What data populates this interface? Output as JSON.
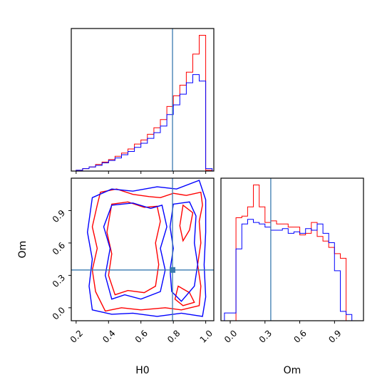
{
  "chart_data": [
    {
      "type": "histogram",
      "panel": "H0 marginal",
      "xlabel": "",
      "xlim": [
        0.17,
        1.05
      ],
      "truth_x": 0.795,
      "bin_edges": [
        0.2,
        0.24,
        0.28,
        0.32,
        0.36,
        0.4,
        0.44,
        0.48,
        0.52,
        0.56,
        0.6,
        0.64,
        0.68,
        0.72,
        0.76,
        0.8,
        0.84,
        0.88,
        0.92,
        0.96,
        1.0,
        1.04
      ],
      "series": [
        {
          "color": "#ff0000",
          "values": [
            0.2,
            0.6,
            1.0,
            1.6,
            2.2,
            2.8,
            3.6,
            4.4,
            5.4,
            6.6,
            7.6,
            9.0,
            10.6,
            12.6,
            15.8,
            18.4,
            21.0,
            24.2,
            28.6,
            33.2,
            0.2
          ]
        },
        {
          "color": "#0000ff",
          "values": [
            0.2,
            0.6,
            1.0,
            1.4,
            2.0,
            2.6,
            3.2,
            4.0,
            4.8,
            5.8,
            6.8,
            8.0,
            9.4,
            11.0,
            13.8,
            16.2,
            18.8,
            21.6,
            23.6,
            22.0,
            0.6
          ]
        }
      ]
    },
    {
      "type": "histogram",
      "panel": "Om marginal",
      "xlabel": "Om",
      "xlim": [
        -0.08,
        1.15
      ],
      "xticks": [
        "0.0",
        "0.3",
        "0.6",
        "0.9"
      ],
      "truth_x": 0.35,
      "bin_edges": [
        -0.05,
        0.0,
        0.05,
        0.1,
        0.15,
        0.2,
        0.25,
        0.3,
        0.35,
        0.4,
        0.45,
        0.5,
        0.55,
        0.6,
        0.65,
        0.7,
        0.75,
        0.8,
        0.85,
        0.9,
        0.95,
        1.0,
        1.05,
        1.1,
        1.15
      ],
      "series": [
        {
          "color": "#ff0000",
          "values": [
            0.0,
            0.0,
            0.66,
            0.67,
            0.73,
            0.87,
            0.73,
            0.63,
            0.64,
            0.62,
            0.62,
            0.6,
            0.6,
            0.55,
            0.56,
            0.63,
            0.54,
            0.51,
            0.47,
            0.43,
            0.4,
            0.0,
            0.0,
            0.0
          ]
        },
        {
          "color": "#0000ff",
          "values": [
            0.05,
            0.05,
            0.46,
            0.62,
            0.65,
            0.63,
            0.62,
            0.6,
            0.58,
            0.58,
            0.59,
            0.56,
            0.57,
            0.56,
            0.59,
            0.58,
            0.62,
            0.56,
            0.5,
            0.32,
            0.06,
            0.04,
            0.0,
            0.0
          ]
        }
      ]
    },
    {
      "type": "contour",
      "panel": "H0 vs Om",
      "xlabel": "H0",
      "ylabel": "Om",
      "xlim": [
        0.17,
        1.05
      ],
      "ylim": [
        -0.12,
        1.2
      ],
      "xticks": [
        "0.2",
        "0.4",
        "0.6",
        "0.8",
        "1.0"
      ],
      "yticks": [
        "0.0",
        "0.3",
        "0.6",
        "0.9"
      ],
      "truth": {
        "x": 0.795,
        "y": 0.35
      },
      "series": [
        {
          "color": "#ff0000",
          "contours": [
            [
              [
                0.35,
                1.07
              ],
              [
                0.45,
                1.1
              ],
              [
                0.55,
                1.05
              ],
              [
                0.65,
                1.03
              ],
              [
                0.72,
                1.02
              ],
              [
                0.8,
                1.06
              ],
              [
                0.88,
                1.04
              ],
              [
                0.97,
                1.07
              ],
              [
                0.98,
                0.95
              ],
              [
                0.96,
                0.8
              ],
              [
                0.97,
                0.6
              ],
              [
                0.95,
                0.4
              ],
              [
                0.97,
                0.2
              ],
              [
                0.96,
                0.02
              ],
              [
                0.85,
                -0.02
              ],
              [
                0.75,
                0.0
              ],
              [
                0.6,
                -0.02
              ],
              [
                0.48,
                0.0
              ],
              [
                0.38,
                -0.03
              ],
              [
                0.32,
                0.15
              ],
              [
                0.3,
                0.35
              ],
              [
                0.33,
                0.55
              ],
              [
                0.3,
                0.75
              ],
              [
                0.33,
                0.95
              ],
              [
                0.35,
                1.07
              ]
            ],
            [
              [
                0.42,
                0.96
              ],
              [
                0.52,
                0.98
              ],
              [
                0.62,
                0.93
              ],
              [
                0.7,
                0.94
              ],
              [
                0.72,
                0.8
              ],
              [
                0.69,
                0.6
              ],
              [
                0.71,
                0.4
              ],
              [
                0.69,
                0.2
              ],
              [
                0.62,
                0.14
              ],
              [
                0.52,
                0.16
              ],
              [
                0.44,
                0.12
              ],
              [
                0.4,
                0.3
              ],
              [
                0.42,
                0.5
              ],
              [
                0.39,
                0.7
              ],
              [
                0.42,
                0.96
              ]
            ],
            [
              [
                0.86,
                0.95
              ],
              [
                0.92,
                0.88
              ],
              [
                0.9,
                0.72
              ],
              [
                0.86,
                0.62
              ],
              [
                0.84,
                0.76
              ],
              [
                0.86,
                0.95
              ]
            ],
            [
              [
                0.83,
                0.2
              ],
              [
                0.9,
                0.14
              ],
              [
                0.93,
                0.05
              ],
              [
                0.86,
                0.02
              ],
              [
                0.81,
                0.08
              ],
              [
                0.83,
                0.2
              ]
            ]
          ]
        },
        {
          "color": "#0000ff",
          "contours": [
            [
              [
                0.3,
                1.02
              ],
              [
                0.42,
                1.1
              ],
              [
                0.55,
                1.08
              ],
              [
                0.7,
                1.12
              ],
              [
                0.82,
                1.1
              ],
              [
                0.96,
                1.18
              ],
              [
                1.0,
                1.0
              ],
              [
                1.0,
                0.7
              ],
              [
                0.99,
                0.4
              ],
              [
                1.0,
                0.1
              ],
              [
                0.98,
                -0.08
              ],
              [
                0.85,
                -0.05
              ],
              [
                0.7,
                -0.08
              ],
              [
                0.55,
                -0.05
              ],
              [
                0.42,
                -0.06
              ],
              [
                0.3,
                -0.02
              ],
              [
                0.28,
                0.2
              ],
              [
                0.3,
                0.45
              ],
              [
                0.27,
                0.7
              ],
              [
                0.3,
                1.02
              ]
            ],
            [
              [
                0.42,
                0.95
              ],
              [
                0.55,
                0.97
              ],
              [
                0.66,
                0.92
              ],
              [
                0.73,
                0.95
              ],
              [
                0.76,
                0.75
              ],
              [
                0.72,
                0.55
              ],
              [
                0.75,
                0.35
              ],
              [
                0.72,
                0.15
              ],
              [
                0.6,
                0.08
              ],
              [
                0.5,
                0.12
              ],
              [
                0.42,
                0.08
              ],
              [
                0.38,
                0.3
              ],
              [
                0.41,
                0.55
              ],
              [
                0.37,
                0.75
              ],
              [
                0.42,
                0.95
              ]
            ],
            [
              [
                0.8,
                0.96
              ],
              [
                0.9,
                0.98
              ],
              [
                0.94,
                0.85
              ],
              [
                0.93,
                0.6
              ],
              [
                0.95,
                0.4
              ],
              [
                0.93,
                0.2
              ],
              [
                0.85,
                0.06
              ],
              [
                0.79,
                0.15
              ],
              [
                0.78,
                0.35
              ],
              [
                0.8,
                0.55
              ],
              [
                0.78,
                0.75
              ],
              [
                0.8,
                0.96
              ]
            ]
          ]
        }
      ]
    }
  ]
}
